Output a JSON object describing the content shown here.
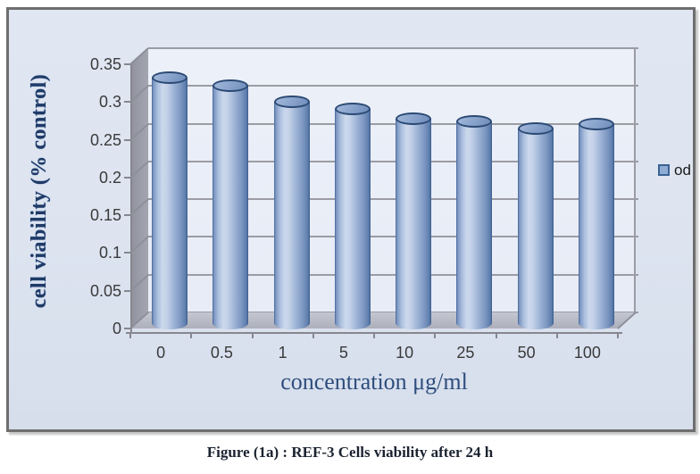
{
  "figure": {
    "caption": "Figure (1a) : REF-3 Cells viability after 24 h"
  },
  "chart_data": {
    "type": "bar",
    "subtype": "3d-cylinder",
    "title": "",
    "categories": [
      "0",
      "0.5",
      "1",
      "5",
      "10",
      "25",
      "50",
      "100"
    ],
    "series": [
      {
        "name": "od",
        "values": [
          0.32,
          0.31,
          0.289,
          0.279,
          0.267,
          0.263,
          0.254,
          0.26
        ]
      }
    ],
    "xlabel": "concentration μg/ml",
    "ylabel": "cell viability (% control)",
    "ylim": [
      0,
      0.35
    ],
    "yticks": [
      0,
      0.05,
      0.1,
      0.15,
      0.2,
      0.25,
      0.3,
      0.35
    ],
    "ytick_labels": [
      "0",
      "0.05",
      "0.1",
      "0.15",
      "0.2",
      "0.25",
      "0.3",
      "0.35"
    ],
    "grid": true,
    "legend": {
      "position": "right",
      "entries": [
        "od"
      ]
    },
    "colors": {
      "bar_body_light": "#ccd8ec",
      "bar_body_dark": "#5f7fae",
      "bar_edge": "#3c5c90",
      "bar_top_fill": "#8aa5cb",
      "bar_top_border": "#2b4a74",
      "wall_background": "#e9edf7",
      "chart_background": "#dde4f0",
      "gridline": "#9b9ca4",
      "floor": "#b7bac4",
      "side_wall": "#9b9da8",
      "outer_border": "#6e6e6e",
      "y_title_color": "#1f3a66",
      "x_title_color": "#2e4d7c",
      "tick_label_color": "#3a3a3a"
    }
  }
}
